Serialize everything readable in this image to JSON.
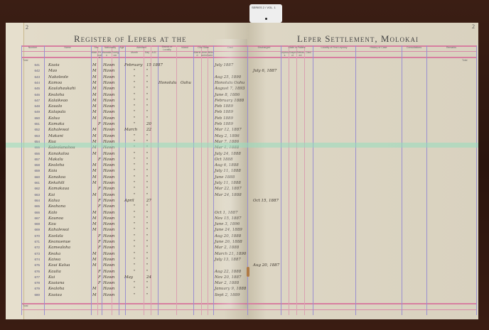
{
  "document": {
    "title_left": "Register of Lepers at the",
    "title_right": "Leper Settlement, Molokai",
    "page_left": "2",
    "page_right": "2",
    "total_label": "Total",
    "archive_tag": "SERIES 2 / VOL. 1"
  },
  "headers_left": [
    "Number",
    "Name",
    "Sex",
    "Male",
    "Female",
    "Nationality",
    "Hawaiian",
    "Foreigner",
    "Age",
    "Admitted",
    "Month",
    "Day",
    "A.D.",
    "District or Locality",
    "Island",
    "Civil State",
    "Married",
    "Unmarried",
    "Widowed",
    "Died"
  ],
  "headers_right": [
    "Discharged",
    "State of Patient",
    "Leprous",
    "Suspect",
    "Released",
    "Died",
    "Locality of First Leprosy",
    "History of Case",
    "Consultations",
    "Remarks"
  ],
  "rows": [
    {
      "no": "641",
      "name": "Kaaia",
      "sex": "M",
      "nat": "Hawn",
      "month": "February",
      "day": "15",
      "year": "1887",
      "died": "July  1887"
    },
    {
      "no": "642",
      "name": "Mao",
      "sex": "M",
      "nat": "Hawn",
      "month": "",
      "day": "",
      "year": "",
      "died": "",
      "discharged": "July 6, 1887"
    },
    {
      "no": "643",
      "name": "Nakoleole",
      "sex": "M",
      "nat": "Hawn",
      "died": "Aug 25, 1890"
    },
    {
      "no": "644",
      "name": "Kamoa",
      "sex": "M",
      "nat": "Hawn",
      "district": "Honolulu",
      "island": "Oahu",
      "died": "Honolulu Oahu"
    },
    {
      "no": "645",
      "name": "Kaulahaukahi",
      "sex": "M",
      "nat": "Hawn",
      "died": "August 7, 1893"
    },
    {
      "no": "646",
      "name": "Kealoha",
      "sex": "M",
      "nat": "Hawn",
      "died": "June 8, 1886"
    },
    {
      "no": "647",
      "name": "Kalaikeao",
      "sex": "M",
      "nat": "Hawn",
      "died": "February 1888"
    },
    {
      "no": "648",
      "name": "Kaualo",
      "sex": "M",
      "nat": "Hawn",
      "died": "Feb  1889"
    },
    {
      "no": "649",
      "name": "Kalapala",
      "sex": "M",
      "nat": "Hawn",
      "died": "Feb  1889"
    },
    {
      "no": "650",
      "name": "Kalua",
      "sex": "M",
      "nat": "Hawn",
      "died": "Feb  1889"
    },
    {
      "no": "651",
      "name": "Kamaka",
      "sex": "F",
      "nat": "Hawn",
      "day": "20",
      "died": "Feb  1889"
    },
    {
      "no": "652",
      "name": "Kahalewai",
      "sex": "M",
      "nat": "Hawn",
      "month": "March",
      "day": "22",
      "died": "Mar 12, 1887"
    },
    {
      "no": "653",
      "name": "Makani",
      "sex": "M",
      "nat": "Hawn",
      "died": "May 2, 1886"
    },
    {
      "no": "654",
      "name": "Kua",
      "sex": "M",
      "nat": "Hawn",
      "died": "Mar 7, 1886"
    },
    {
      "no": "655",
      "name": "Kaleolanahoa",
      "sex": "M",
      "nat": "Hawn",
      "died": "Mar 1, 1888"
    },
    {
      "no": "656",
      "name": "Kanakaloa",
      "sex": "M",
      "nat": "Hawn",
      "died": "July 24, 1888"
    },
    {
      "no": "657",
      "name": "Makalu",
      "sex": "F",
      "nat": "Hawn",
      "died": "Oct  1888"
    },
    {
      "no": "658",
      "name": "Kealoha",
      "sex": "M",
      "nat": "Hawn",
      "died": "Aug 6, 1888"
    },
    {
      "no": "659",
      "name": "Kaia",
      "sex": "M",
      "nat": "Hawn",
      "died": "July 11, 1888"
    },
    {
      "no": "660",
      "name": "Kanakoa",
      "sex": "M",
      "nat": "Hawn",
      "died": "June  1888"
    },
    {
      "no": "661",
      "name": "Kekahili",
      "sex": "M",
      "nat": "Hawn",
      "died": "July 11, 1888"
    },
    {
      "no": "662",
      "name": "Kamakaua",
      "sex": "F",
      "nat": "Hawn",
      "died": "Mar 22, 1887"
    },
    {
      "no": "663",
      "name": "Kai",
      "sex": "M",
      "nat": "Hawn",
      "died": "Mar 24, 1888"
    },
    {
      "no": "664",
      "name": "Kalua",
      "sex": "F",
      "nat": "Hawn",
      "month": "April",
      "day": "27",
      "discharged": "Oct 15, 1887"
    },
    {
      "no": "665",
      "name": "Keahana",
      "sex": "F",
      "nat": "Hawn",
      "died": ""
    },
    {
      "no": "666",
      "name": "Kalo",
      "sex": "M",
      "nat": "Hawn",
      "died": "Oct 1, 1887"
    },
    {
      "no": "667",
      "name": "Kaunoa",
      "sex": "M",
      "nat": "Hawn",
      "died": "Nov 15, 1887"
    },
    {
      "no": "668",
      "name": "Kau",
      "sex": "M",
      "nat": "Hawn",
      "died": "June 3, 1896"
    },
    {
      "no": "669",
      "name": "Kahalewai",
      "sex": "M",
      "nat": "Hawn",
      "died": "June 24, 1889"
    },
    {
      "no": "670",
      "name": "Kaolala",
      "sex": "F",
      "nat": "Hawn",
      "died": "Aug 20, 1888"
    },
    {
      "no": "671",
      "name": "Keanuenue",
      "sex": "F",
      "nat": "Hawn",
      "died": "June 26, 1888"
    },
    {
      "no": "672",
      "name": "Kamealoha",
      "sex": "F",
      "nat": "Hawn",
      "died": "Mar 2, 1888"
    },
    {
      "no": "673",
      "name": "Keaka",
      "sex": "M",
      "nat": "Hawn",
      "died": "March 21, 1890"
    },
    {
      "no": "674",
      "name": "Kaiwa",
      "sex": "M",
      "nat": "Hawn",
      "died": "July 13, 1887"
    },
    {
      "no": "675",
      "name": "Kaui Kalua",
      "sex": "M",
      "nat": "Hawn",
      "died": "",
      "discharged": "Aug 20, 1887"
    },
    {
      "no": "676",
      "name": "Kaulia",
      "sex": "F",
      "nat": "Hawn",
      "died": "Aug 22, 1888"
    },
    {
      "no": "677",
      "name": "Kui",
      "sex": "F",
      "nat": "Hawn",
      "month": "May",
      "day": "24",
      "died": "Nov 20, 1887"
    },
    {
      "no": "678",
      "name": "Kaaiana",
      "sex": "F",
      "nat": "Hawn",
      "died": "Mar 2, 1888"
    },
    {
      "no": "679",
      "name": "Kealoha",
      "sex": "M",
      "nat": "Hawn",
      "died": "January 9, 1888"
    },
    {
      "no": "680",
      "name": "Kaaiaa",
      "sex": "M",
      "nat": "Hawn",
      "died": "Sept 2, 1889"
    }
  ]
}
